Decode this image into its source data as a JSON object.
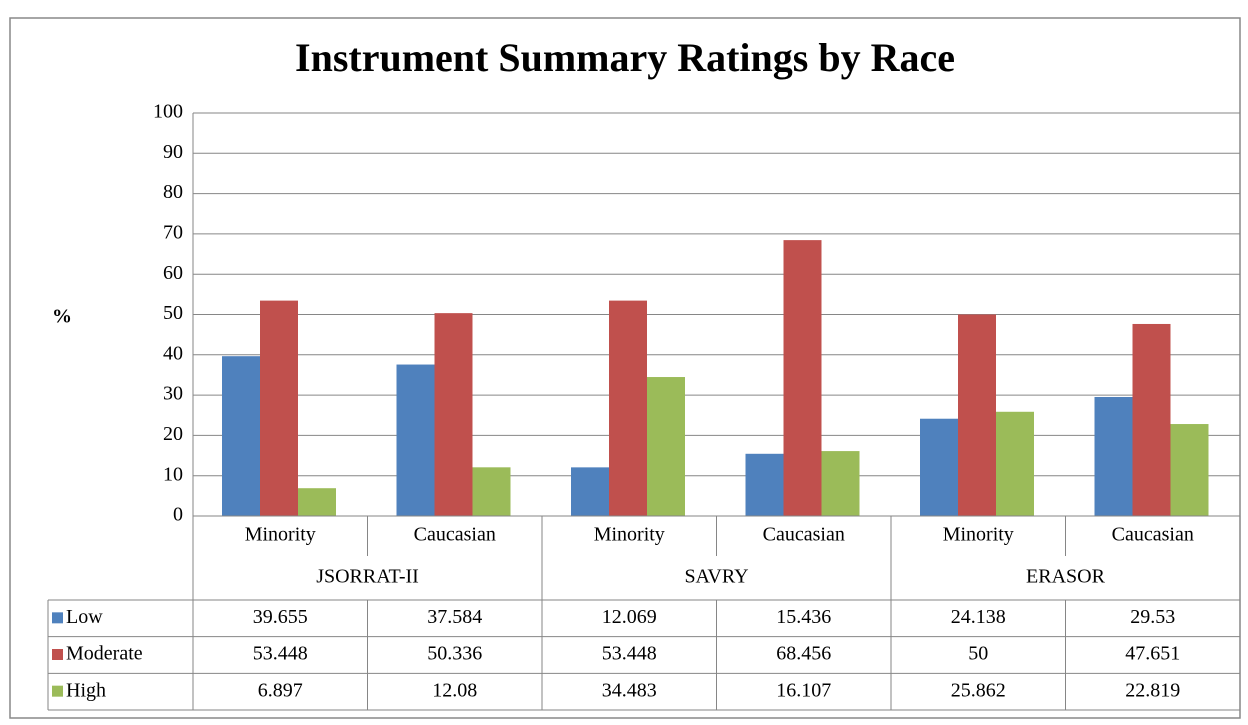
{
  "chart_data": {
    "type": "bar",
    "title": "Instrument Summary Ratings by Race",
    "y_label": "%",
    "categories": [
      "Minority",
      "Caucasian",
      "Minority",
      "Caucasian",
      "Minority",
      "Caucasian"
    ],
    "groups": [
      "JSORRAT-II",
      "SAVRY",
      "ERASOR"
    ],
    "series": [
      {
        "name": "Low",
        "color": "#4f81bd",
        "values": [
          39.655,
          37.584,
          12.069,
          15.436,
          24.138,
          29.53
        ]
      },
      {
        "name": "Moderate",
        "color": "#c0504d",
        "values": [
          53.448,
          50.336,
          53.448,
          68.456,
          50,
          47.651
        ]
      },
      {
        "name": "High",
        "color": "#9bbb59",
        "values": [
          6.897,
          12.08,
          34.483,
          16.107,
          25.862,
          22.819
        ]
      }
    ],
    "ylim": [
      0,
      100
    ],
    "yticks": [
      0,
      10,
      20,
      30,
      40,
      50,
      60,
      70,
      80,
      90,
      100
    ],
    "grid": true,
    "data_table": true
  }
}
